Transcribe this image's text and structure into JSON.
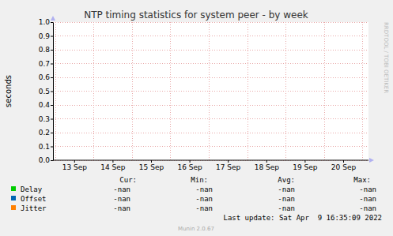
{
  "chart_data": {
    "type": "line",
    "title": "NTP timing statistics for system peer - by week",
    "y_label": "seconds",
    "categories": [
      "13 Sep",
      "14 Sep",
      "15 Sep",
      "16 Sep",
      "17 Sep",
      "18 Sep",
      "19 Sep",
      "20 Sep"
    ],
    "series": [
      {
        "name": "Delay",
        "color": "#00cc00",
        "values": [
          null,
          null,
          null,
          null,
          null,
          null,
          null,
          null
        ],
        "stats": [
          "-nan",
          "-nan",
          "-nan",
          "-nan"
        ]
      },
      {
        "name": "Offset",
        "color": "#0066b3",
        "values": [
          null,
          null,
          null,
          null,
          null,
          null,
          null,
          null
        ],
        "stats": [
          "-nan",
          "-nan",
          "-nan",
          "-nan"
        ]
      },
      {
        "name": "Jitter",
        "color": "#ff8000",
        "values": [
          null,
          null,
          null,
          null,
          null,
          null,
          null,
          null
        ],
        "stats": [
          "-nan",
          "-nan",
          "-nan",
          "-nan"
        ]
      }
    ],
    "stat_headers": [
      "Cur:",
      "Min:",
      "Avg:",
      "Max:"
    ],
    "ylim": [
      0,
      1
    ],
    "yticks": [
      {
        "value": 0,
        "label": "0.0"
      },
      0.1,
      0.2,
      0.3,
      0.4,
      0.5,
      0.6,
      0.7,
      0.8,
      0.9,
      {
        "value": 1,
        "label": "1.0"
      }
    ],
    "grid": true,
    "last_update": "Last update: Sat Apr  9 16:35:09 2022",
    "footer": "Munin 2.0.67",
    "watermark": "RRDTOOL / TOBI OETIKER"
  }
}
